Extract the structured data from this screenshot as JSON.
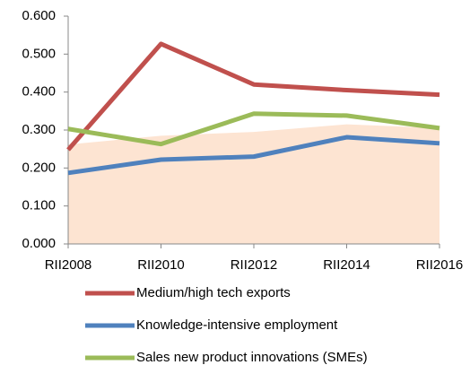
{
  "chart_data": {
    "type": "line",
    "categories": [
      "RII2008",
      "RII2010",
      "RII2012",
      "RII2014",
      "RII2016"
    ],
    "ylim": [
      0,
      0.6
    ],
    "yticks": [
      {
        "value": 0,
        "label": "0.000"
      },
      {
        "value": 0.1,
        "label": "0.100"
      },
      {
        "value": 0.2,
        "label": "0.200"
      },
      {
        "value": 0.3,
        "label": "0.300"
      },
      {
        "value": 0.4,
        "label": "0.400"
      },
      {
        "value": 0.5,
        "label": "0.500"
      },
      {
        "value": 0.6,
        "label": "0.600"
      }
    ],
    "area": {
      "color": "#fde4d2",
      "values": [
        0.262,
        0.285,
        0.295,
        0.315,
        0.305
      ]
    },
    "series": [
      {
        "name": "Medium/high tech exports",
        "color": "#c0504d",
        "values": [
          0.248,
          0.527,
          0.42,
          0.405,
          0.393
        ]
      },
      {
        "name": "Knowledge-intensive employment",
        "color": "#4f81bd",
        "values": [
          0.187,
          0.222,
          0.23,
          0.281,
          0.265
        ]
      },
      {
        "name": "Sales new product innovations (SMEs)",
        "color": "#9bbb59",
        "values": [
          0.303,
          0.263,
          0.343,
          0.338,
          0.305
        ]
      }
    ]
  }
}
